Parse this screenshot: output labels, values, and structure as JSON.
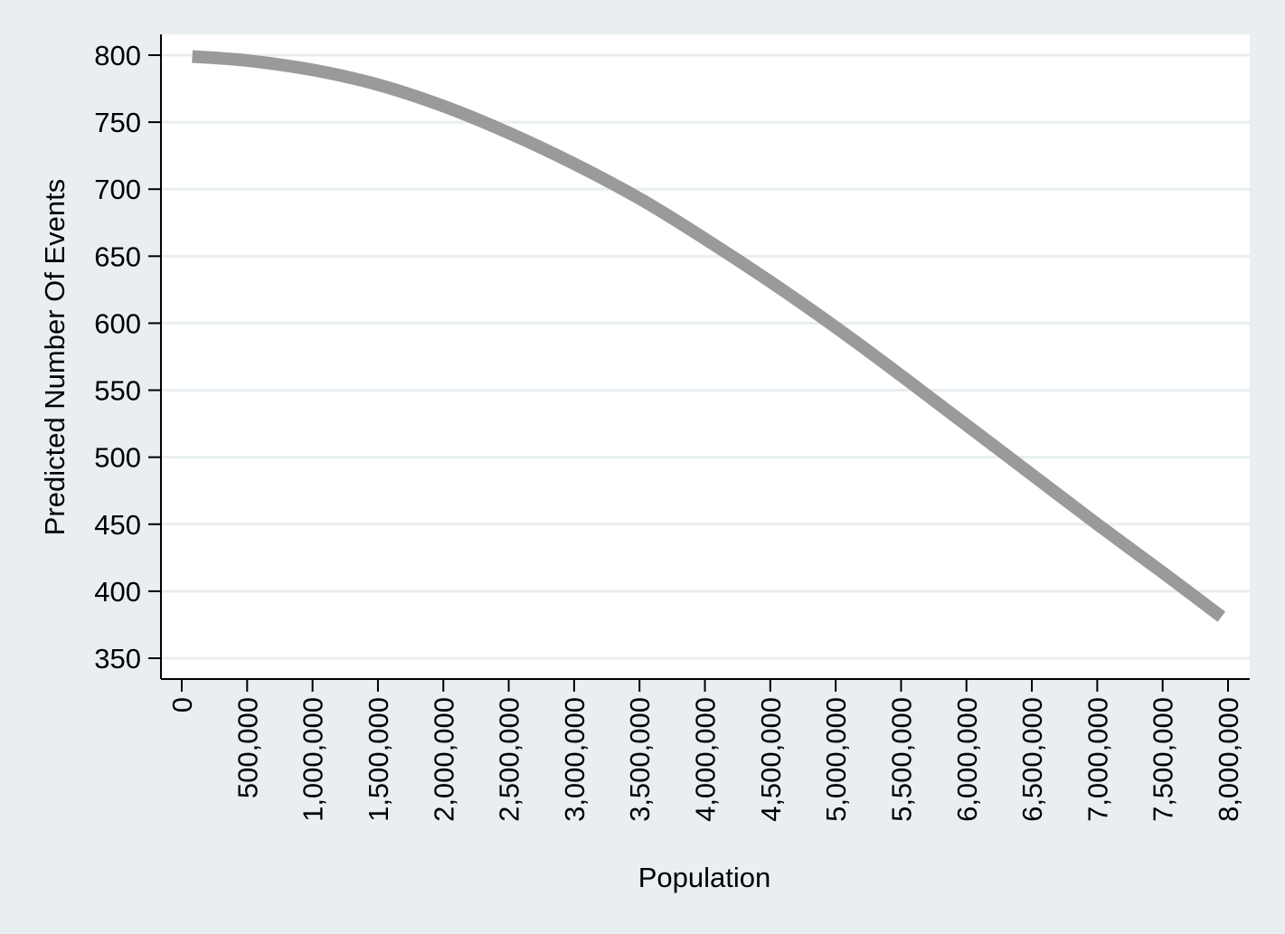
{
  "chart_data": {
    "type": "line",
    "title": "",
    "xlabel": "Population",
    "ylabel": "Predicted Number Of Events",
    "xlim": [
      0,
      8000000
    ],
    "ylim": [
      335,
      815
    ],
    "x_ticks": [
      0,
      500000,
      1000000,
      1500000,
      2000000,
      2500000,
      3000000,
      3500000,
      4000000,
      4500000,
      5000000,
      5500000,
      6000000,
      6500000,
      7000000,
      7500000,
      8000000
    ],
    "x_tick_labels": [
      "0",
      "500,000",
      "1,000,000",
      "1,500,000",
      "2,000,000",
      "2,500,000",
      "3,000,000",
      "3,500,000",
      "4,000,000",
      "4,500,000",
      "5,000,000",
      "5,500,000",
      "6,000,000",
      "6,500,000",
      "7,000,000",
      "7,500,000",
      "8,000,000"
    ],
    "y_ticks": [
      350,
      400,
      450,
      500,
      550,
      600,
      650,
      700,
      750,
      800
    ],
    "y_tick_labels": [
      "350",
      "400",
      "450",
      "500",
      "550",
      "600",
      "650",
      "700",
      "750",
      "800"
    ],
    "grid": true,
    "legend": "none",
    "series": [
      {
        "x": [
          80000,
          500000,
          1000000,
          1500000,
          2000000,
          2500000,
          3000000,
          3500000,
          4000000,
          4500000,
          5000000,
          5500000,
          6000000,
          6500000,
          7000000,
          7500000,
          7950000
        ],
        "values": [
          799,
          796,
          789,
          778,
          762,
          742,
          719,
          693,
          663,
          631,
          597,
          561,
          524,
          487,
          450,
          414,
          381
        ]
      }
    ],
    "colors": {
      "background": "#e8eef1",
      "plot_area": "#ffffff",
      "grid": "#e8eef1",
      "line": "#9a9a9a",
      "axis": "#000000"
    }
  }
}
